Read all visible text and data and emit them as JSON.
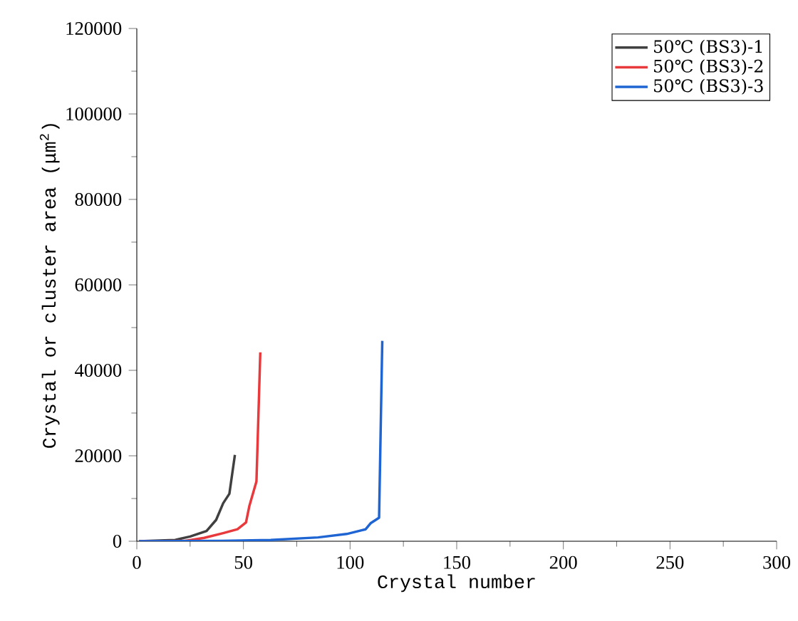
{
  "chart_data": {
    "type": "line",
    "xlabel": "Crystal number",
    "ylabel": "Crystal or cluster area (μm$^{2}$)",
    "xlim": [
      0,
      300
    ],
    "xticks": [
      0,
      50,
      100,
      150,
      200,
      250,
      300
    ],
    "ylim": [
      0,
      120000
    ],
    "yticks": [
      0,
      20000,
      40000,
      60000,
      80000,
      100000,
      120000
    ],
    "legend": "top right",
    "grid": false,
    "marker": "none",
    "line_style": "solid",
    "series": [
      {
        "name": "50℃ (BS3)-1",
        "color": "#404040",
        "x": [
          1,
          18,
          25,
          32.7,
          37.2,
          40.5,
          43.4,
          46
        ],
        "values": [
          0,
          300,
          1100,
          2400,
          5000,
          8900,
          11100,
          20200
        ]
      },
      {
        "name": "50℃ (BS3)-2",
        "color": "#e8393c",
        "x": [
          1,
          22.7,
          31.6,
          40.5,
          47.2,
          51.2,
          52.8,
          56.1,
          57.9
        ],
        "values": [
          0,
          100,
          800,
          1900,
          2800,
          4400,
          8300,
          14000,
          44200
        ]
      },
      {
        "name": "50℃ (BS3)-3",
        "color": "#1e64d2",
        "x": [
          1,
          40,
          62.8,
          85,
          98.4,
          107.3,
          109.6,
          113.6,
          115.1
        ],
        "values": [
          0,
          100,
          300,
          900,
          1700,
          2800,
          4200,
          5500,
          46900
        ]
      }
    ]
  }
}
